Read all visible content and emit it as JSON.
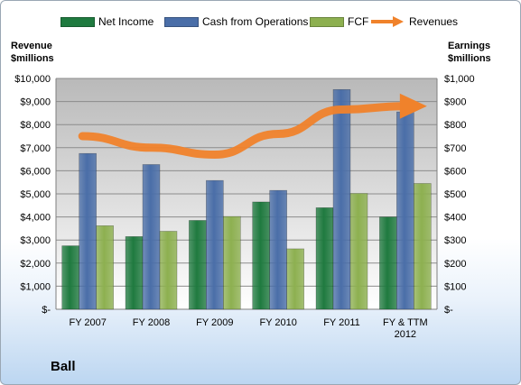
{
  "company": "Ball",
  "legend": [
    {
      "label": "Net Income",
      "color": "#1f7a3f",
      "kind": "bar"
    },
    {
      "label": "Cash from Operations",
      "color": "#4a6ea8",
      "kind": "bar"
    },
    {
      "label": "FCF",
      "color": "#8db050",
      "kind": "bar"
    },
    {
      "label": "Revenues",
      "color": "#f0822b",
      "kind": "arrow"
    }
  ],
  "chart_data": {
    "type": "bar",
    "categories": [
      "FY 2007",
      "FY 2008",
      "FY 2009",
      "FY 2010",
      "FY 2011",
      "FY & TTM\n2012"
    ],
    "series": [
      {
        "name": "Net Income",
        "axis": "right",
        "color": "#1f7a3f",
        "values": [
          275,
          315,
          385,
          465,
          440,
          400
        ]
      },
      {
        "name": "Cash from Operations",
        "axis": "right",
        "color": "#4a6ea8",
        "values": [
          675,
          627,
          558,
          515,
          952,
          855
        ]
      },
      {
        "name": "FCF",
        "axis": "right",
        "color": "#8db050",
        "values": [
          362,
          338,
          402,
          262,
          502,
          545
        ]
      },
      {
        "name": "Revenues",
        "axis": "left",
        "kind": "line-arrow",
        "color": "#f0822b",
        "values": [
          7500,
          7000,
          6700,
          7600,
          8650,
          8800
        ]
      }
    ],
    "y_left": {
      "title": "Revenue\n$millions",
      "min": 0,
      "max": 10000,
      "ticks": [
        "$-",
        "$1,000",
        "$2,000",
        "$3,000",
        "$4,000",
        "$5,000",
        "$6,000",
        "$7,000",
        "$8,000",
        "$9,000",
        "$10,000"
      ]
    },
    "y_right": {
      "title": "Earnings\n$millions",
      "min": 0,
      "max": 1000,
      "ticks": [
        "$-",
        "$100",
        "$200",
        "$300",
        "$400",
        "$500",
        "$600",
        "$700",
        "$800",
        "$900",
        "$1,000"
      ]
    },
    "grid": true,
    "legend_position": "top"
  }
}
